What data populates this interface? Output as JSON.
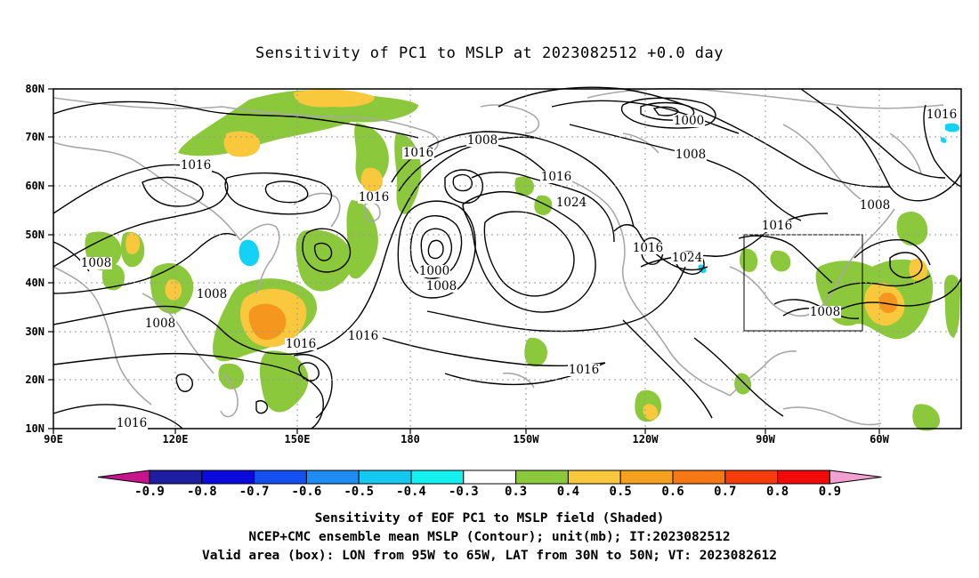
{
  "title": "Sensitivity of PC1 to MSLP at 2023082512 +0.0 day",
  "map": {
    "lat_labels": [
      "80N",
      "70N",
      "60N",
      "50N",
      "40N",
      "30N",
      "20N",
      "10N"
    ],
    "lon_labels": [
      "90E",
      "120E",
      "150E",
      "180",
      "150W",
      "120W",
      "90W",
      "60W"
    ],
    "lon_range": [
      90,
      310
    ],
    "lat_range": [
      10,
      80
    ],
    "valid_box": {
      "lon_from": "95W",
      "lon_to": "65W",
      "lat_from": "30N",
      "lat_to": "50N"
    },
    "contour_labels": [
      "1016",
      "1000",
      "1008",
      "1016",
      "1016",
      "1016",
      "1008",
      "1016",
      "1024",
      "1016",
      "1024",
      "1016",
      "1008",
      "1000",
      "1008",
      "1016",
      "1016",
      "1008",
      "1008",
      "1008",
      "1008",
      "1016",
      "1016",
      "1008"
    ],
    "colors": {
      "coast": "#a8a8a8",
      "contour": "#000000",
      "green": "#8cc83c",
      "yellow": "#fac83c",
      "orange": "#f5961e",
      "cyan": "#14d2f5"
    }
  },
  "colorbar": {
    "labels": [
      "-0.9",
      "-0.8",
      "-0.7",
      "-0.6",
      "-0.5",
      "-0.4",
      "-0.3",
      "0.3",
      "0.4",
      "0.5",
      "0.6",
      "0.7",
      "0.8",
      "0.9"
    ],
    "colors": [
      "#c8148c",
      "#1e1ea0",
      "#0a0adc",
      "#1450f0",
      "#1e8cf0",
      "#14c8f0",
      "#14f0f0",
      "#ffffff",
      "#8cc83c",
      "#fac83c",
      "#f5a01e",
      "#f57814",
      "#f53c0a",
      "#f00a0a",
      "#f5a0d2"
    ]
  },
  "captions": {
    "line1": "Sensitivity of EOF PC1 to MSLP field (Shaded)",
    "line2": "NCEP+CMC ensemble mean MSLP (Contour); unit(mb); IT:2023082512",
    "line3": "Valid area (box): LON from 95W to 65W, LAT from 30N to 50N; VT: 2023082612"
  }
}
